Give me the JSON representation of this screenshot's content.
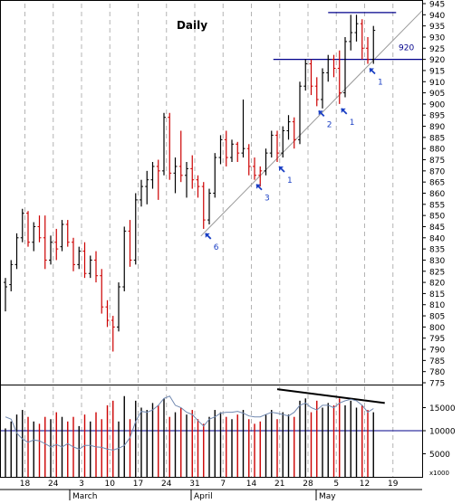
{
  "chart_data": {
    "type": "ohlc",
    "title": "Daily",
    "price_axis": {
      "min": 775,
      "max": 945,
      "step": 5,
      "ticks": [
        775,
        780,
        785,
        790,
        795,
        800,
        805,
        810,
        815,
        820,
        825,
        830,
        835,
        840,
        845,
        850,
        855,
        860,
        865,
        870,
        875,
        880,
        885,
        890,
        895,
        900,
        905,
        910,
        915,
        920,
        925,
        930,
        935,
        940,
        945
      ]
    },
    "volume_axis": {
      "min": 0,
      "max": 20000,
      "ticks": [
        5000,
        10000,
        15000
      ],
      "unit_label": "x1000",
      "reference_line": 10000
    },
    "date_ticks": {
      "days": [
        "18",
        "24",
        "3",
        "10",
        "17",
        "24",
        "31",
        "7",
        "14",
        "21",
        "28",
        "5",
        "12",
        "19"
      ],
      "months": [
        "March",
        "April",
        "May"
      ]
    },
    "bars": [
      {
        "date": "Feb 14",
        "o": 820,
        "h": 822,
        "l": 807,
        "c": 818,
        "v": 10500,
        "down": false
      },
      {
        "date": "Feb 15",
        "o": 819,
        "h": 830,
        "l": 816,
        "c": 828,
        "v": 12000,
        "down": false
      },
      {
        "date": "Feb 18",
        "o": 828,
        "h": 842,
        "l": 826,
        "c": 840,
        "v": 13500,
        "down": false
      },
      {
        "date": "Feb 19",
        "o": 840,
        "h": 853,
        "l": 838,
        "c": 851,
        "v": 14500,
        "down": false
      },
      {
        "date": "Feb 20",
        "o": 851,
        "h": 852,
        "l": 836,
        "c": 838,
        "v": 13000,
        "down": true
      },
      {
        "date": "Feb 21",
        "o": 838,
        "h": 847,
        "l": 834,
        "c": 845,
        "v": 12000,
        "down": false
      },
      {
        "date": "Feb 22",
        "o": 845,
        "h": 850,
        "l": 838,
        "c": 840,
        "v": 11500,
        "down": true
      },
      {
        "date": "Feb 25",
        "o": 840,
        "h": 850,
        "l": 826,
        "c": 830,
        "v": 13000,
        "down": true
      },
      {
        "date": "Feb 26",
        "o": 830,
        "h": 841,
        "l": 828,
        "c": 838,
        "v": 12500,
        "down": false
      },
      {
        "date": "Feb 27",
        "o": 838,
        "h": 844,
        "l": 830,
        "c": 835,
        "v": 14000,
        "down": true
      },
      {
        "date": "Feb 28",
        "o": 836,
        "h": 848,
        "l": 834,
        "c": 846,
        "v": 13000,
        "down": false
      },
      {
        "date": "Mar 1",
        "o": 846,
        "h": 848,
        "l": 836,
        "c": 838,
        "v": 12000,
        "down": true
      },
      {
        "date": "Mar 4",
        "o": 838,
        "h": 840,
        "l": 825,
        "c": 828,
        "v": 13000,
        "down": true
      },
      {
        "date": "Mar 5",
        "o": 828,
        "h": 836,
        "l": 826,
        "c": 834,
        "v": 11000,
        "down": false
      },
      {
        "date": "Mar 6",
        "o": 834,
        "h": 838,
        "l": 822,
        "c": 824,
        "v": 13500,
        "down": true
      },
      {
        "date": "Mar 7",
        "o": 824,
        "h": 832,
        "l": 822,
        "c": 830,
        "v": 12000,
        "down": false
      },
      {
        "date": "Mar 8",
        "o": 830,
        "h": 834,
        "l": 820,
        "c": 823,
        "v": 14000,
        "down": true
      },
      {
        "date": "Mar 11",
        "o": 823,
        "h": 826,
        "l": 806,
        "c": 809,
        "v": 12500,
        "down": true
      },
      {
        "date": "Mar 12",
        "o": 809,
        "h": 812,
        "l": 800,
        "c": 803,
        "v": 15500,
        "down": true
      },
      {
        "date": "Mar 13",
        "o": 803,
        "h": 805,
        "l": 789,
        "c": 800,
        "v": 16500,
        "down": true
      },
      {
        "date": "Mar 14",
        "o": 800,
        "h": 820,
        "l": 798,
        "c": 818,
        "v": 12000,
        "down": false
      },
      {
        "date": "Mar 15",
        "o": 818,
        "h": 845,
        "l": 816,
        "c": 843,
        "v": 17500,
        "down": false
      },
      {
        "date": "Mar 18",
        "o": 843,
        "h": 848,
        "l": 827,
        "c": 830,
        "v": 12500,
        "down": true
      },
      {
        "date": "Mar 19",
        "o": 830,
        "h": 860,
        "l": 828,
        "c": 857,
        "v": 16500,
        "down": false
      },
      {
        "date": "Mar 20",
        "o": 857,
        "h": 866,
        "l": 854,
        "c": 863,
        "v": 15000,
        "down": false
      },
      {
        "date": "Mar 21",
        "o": 863,
        "h": 870,
        "l": 855,
        "c": 866,
        "v": 14500,
        "down": false
      },
      {
        "date": "Mar 22",
        "o": 866,
        "h": 874,
        "l": 862,
        "c": 872,
        "v": 16000,
        "down": false
      },
      {
        "date": "Mar 25",
        "o": 872,
        "h": 875,
        "l": 857,
        "c": 870,
        "v": 15500,
        "down": true
      },
      {
        "date": "Mar 26",
        "o": 870,
        "h": 896,
        "l": 868,
        "c": 894,
        "v": 17000,
        "down": false
      },
      {
        "date": "Mar 27",
        "o": 894,
        "h": 896,
        "l": 866,
        "c": 869,
        "v": 13000,
        "down": true
      },
      {
        "date": "Mar 28",
        "o": 869,
        "h": 876,
        "l": 860,
        "c": 872,
        "v": 14000,
        "down": false
      },
      {
        "date": "Mar 29",
        "o": 872,
        "h": 888,
        "l": 865,
        "c": 868,
        "v": 15000,
        "down": true
      },
      {
        "date": "Apr 1",
        "o": 868,
        "h": 874,
        "l": 858,
        "c": 871,
        "v": 13500,
        "down": false
      },
      {
        "date": "Apr 2",
        "o": 871,
        "h": 877,
        "l": 862,
        "c": 866,
        "v": 14500,
        "down": true
      },
      {
        "date": "Apr 3",
        "o": 866,
        "h": 868,
        "l": 858,
        "c": 863,
        "v": 12500,
        "down": true
      },
      {
        "date": "Apr 4",
        "o": 863,
        "h": 865,
        "l": 844,
        "c": 848,
        "v": 11500,
        "down": true
      },
      {
        "date": "Apr 5",
        "o": 848,
        "h": 862,
        "l": 846,
        "c": 860,
        "v": 13000,
        "down": false
      },
      {
        "date": "Apr 8",
        "o": 860,
        "h": 878,
        "l": 858,
        "c": 876,
        "v": 14500,
        "down": false
      },
      {
        "date": "Apr 9",
        "o": 876,
        "h": 886,
        "l": 873,
        "c": 884,
        "v": 14000,
        "down": false
      },
      {
        "date": "Apr 10",
        "o": 884,
        "h": 888,
        "l": 872,
        "c": 876,
        "v": 13000,
        "down": true
      },
      {
        "date": "Apr 11",
        "o": 876,
        "h": 884,
        "l": 874,
        "c": 882,
        "v": 12500,
        "down": false
      },
      {
        "date": "Apr 12",
        "o": 882,
        "h": 883,
        "l": 874,
        "c": 878,
        "v": 13500,
        "down": true
      },
      {
        "date": "Apr 15",
        "o": 878,
        "h": 902,
        "l": 876,
        "c": 880,
        "v": 14500,
        "down": false
      },
      {
        "date": "Apr 16",
        "o": 880,
        "h": 882,
        "l": 868,
        "c": 872,
        "v": 12500,
        "down": true
      },
      {
        "date": "Apr 17",
        "o": 872,
        "h": 876,
        "l": 866,
        "c": 868,
        "v": 11500,
        "down": true
      },
      {
        "date": "Apr 18",
        "o": 868,
        "h": 872,
        "l": 863,
        "c": 870,
        "v": 12000,
        "down": true
      },
      {
        "date": "Apr 19",
        "o": 870,
        "h": 880,
        "l": 868,
        "c": 878,
        "v": 13500,
        "down": false
      },
      {
        "date": "Apr 22",
        "o": 878,
        "h": 888,
        "l": 876,
        "c": 886,
        "v": 14500,
        "down": false
      },
      {
        "date": "Apr 23",
        "o": 886,
        "h": 888,
        "l": 874,
        "c": 878,
        "v": 12500,
        "down": true
      },
      {
        "date": "Apr 24",
        "o": 878,
        "h": 890,
        "l": 876,
        "c": 888,
        "v": 14000,
        "down": false
      },
      {
        "date": "Apr 25",
        "o": 888,
        "h": 895,
        "l": 884,
        "c": 892,
        "v": 13500,
        "down": false
      },
      {
        "date": "Apr 26",
        "o": 892,
        "h": 894,
        "l": 880,
        "c": 884,
        "v": 13000,
        "down": true
      },
      {
        "date": "Apr 29",
        "o": 884,
        "h": 910,
        "l": 882,
        "c": 908,
        "v": 16500,
        "down": false
      },
      {
        "date": "Apr 30",
        "o": 908,
        "h": 920,
        "l": 906,
        "c": 918,
        "v": 17000,
        "down": false
      },
      {
        "date": "May 1",
        "o": 918,
        "h": 920,
        "l": 904,
        "c": 908,
        "v": 14000,
        "down": true
      },
      {
        "date": "May 2",
        "o": 908,
        "h": 912,
        "l": 899,
        "c": 902,
        "v": 16500,
        "down": true
      },
      {
        "date": "May 3",
        "o": 902,
        "h": 916,
        "l": 898,
        "c": 914,
        "v": 15000,
        "down": false
      },
      {
        "date": "May 6",
        "o": 914,
        "h": 922,
        "l": 910,
        "c": 920,
        "v": 16000,
        "down": false
      },
      {
        "date": "May 7",
        "o": 920,
        "h": 922,
        "l": 912,
        "c": 916,
        "v": 15500,
        "down": true
      },
      {
        "date": "May 8",
        "o": 916,
        "h": 924,
        "l": 900,
        "c": 905,
        "v": 17000,
        "down": true
      },
      {
        "date": "May 9",
        "o": 905,
        "h": 930,
        "l": 903,
        "c": 928,
        "v": 15500,
        "down": false
      },
      {
        "date": "May 10",
        "o": 928,
        "h": 940,
        "l": 924,
        "c": 932,
        "v": 16500,
        "down": false
      },
      {
        "date": "May 13",
        "o": 932,
        "h": 940,
        "l": 928,
        "c": 936,
        "v": 15000,
        "down": false
      },
      {
        "date": "May 14",
        "o": 936,
        "h": 938,
        "l": 920,
        "c": 925,
        "v": 15500,
        "down": true
      },
      {
        "date": "May 15",
        "o": 925,
        "h": 930,
        "l": 918,
        "c": 920,
        "v": 14500,
        "down": true
      },
      {
        "date": "May 16",
        "o": 920,
        "h": 935,
        "l": 918,
        "c": 933,
        "v": 14000,
        "down": false
      }
    ],
    "volume_ma": [
      13000,
      12500,
      9500,
      8200,
      7500,
      8000,
      7800,
      7200,
      6500,
      7000,
      6500,
      7200,
      6500,
      6000,
      6800,
      6800,
      6500,
      6400,
      6000,
      5800,
      6200,
      6800,
      8500,
      12000,
      14200,
      14000,
      14500,
      15500,
      17000,
      17500,
      15500,
      15000,
      14000,
      13500,
      12200,
      11000,
      12500,
      13000,
      13800,
      14000,
      14000,
      14200,
      13800,
      13200,
      13000,
      13000,
      13500,
      14000,
      13800,
      13500,
      13200,
      14000,
      15500,
      16000,
      15000,
      14500,
      15500,
      15500,
      15000,
      16000,
      16500,
      16800,
      16500,
      15500,
      14000,
      14800
    ],
    "annotations": [
      {
        "text": "920",
        "price": 920
      },
      {
        "text": "6",
        "arrow_at": "Apr 4"
      },
      {
        "text": "3",
        "arrow_at": "Apr 17"
      },
      {
        "text": "1",
        "arrow_at": "Apr 23"
      },
      {
        "text": "2",
        "arrow_at": "May 2"
      },
      {
        "text": "1",
        "arrow_at": "May 8"
      },
      {
        "text": "1",
        "arrow_at": "May 15"
      }
    ],
    "resistance_lines": [
      920,
      941
    ],
    "grid": true,
    "colors": {
      "up_bar": "#000000",
      "down_bar": "#cc0000",
      "line": "#00008b",
      "trendline": "#999999",
      "arrow": "#1a3fc4",
      "grid": "#b4b4b4",
      "volume_ma": "#7088b0"
    }
  }
}
